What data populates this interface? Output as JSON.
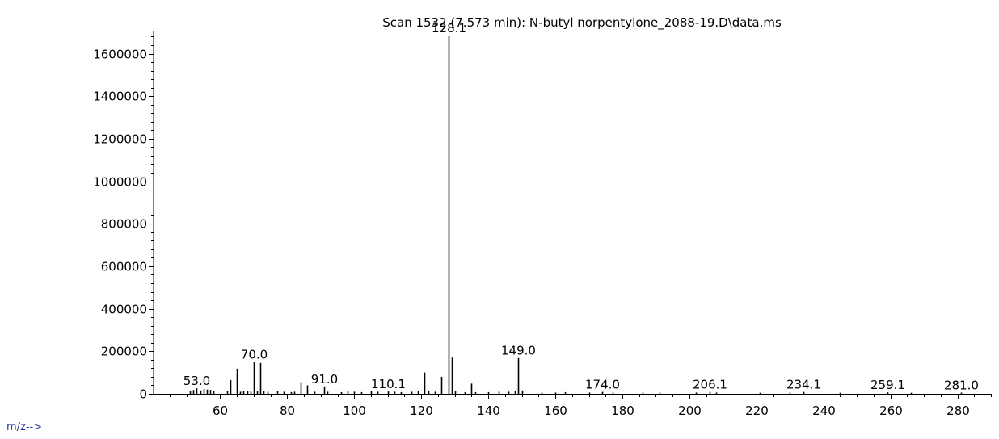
{
  "xaxis_label": "m/z-->",
  "chart_data": {
    "type": "bar",
    "title": "Scan 1532 (7.573 min): N-butyl norpentylone_2088-19.D\\data.ms",
    "xlabel": "m/z-->",
    "ylabel": "",
    "xlim": [
      43,
      290
    ],
    "ylim": [
      0,
      1750000
    ],
    "x_ticks": [
      60,
      80,
      100,
      120,
      140,
      160,
      180,
      200,
      220,
      240,
      260,
      280
    ],
    "y_ticks": [
      0,
      200000,
      400000,
      600000,
      800000,
      1000000,
      1200000,
      1400000,
      1600000
    ],
    "grid": false,
    "peaks": [
      {
        "mz": 51.0,
        "abundance": 14000
      },
      {
        "mz": 52.0,
        "abundance": 18000
      },
      {
        "mz": 53.0,
        "abundance": 26000,
        "label": "53.0"
      },
      {
        "mz": 54.0,
        "abundance": 16000
      },
      {
        "mz": 55.0,
        "abundance": 22000
      },
      {
        "mz": 56.0,
        "abundance": 20000
      },
      {
        "mz": 57.0,
        "abundance": 18000
      },
      {
        "mz": 58.0,
        "abundance": 12000
      },
      {
        "mz": 62.0,
        "abundance": 14000
      },
      {
        "mz": 63.0,
        "abundance": 65000
      },
      {
        "mz": 65.0,
        "abundance": 118000
      },
      {
        "mz": 66.0,
        "abundance": 10000
      },
      {
        "mz": 67.0,
        "abundance": 14000
      },
      {
        "mz": 68.0,
        "abundance": 12000
      },
      {
        "mz": 69.0,
        "abundance": 14000
      },
      {
        "mz": 70.0,
        "abundance": 150000,
        "label": "70.0"
      },
      {
        "mz": 71.0,
        "abundance": 12000
      },
      {
        "mz": 72.0,
        "abundance": 145000
      },
      {
        "mz": 73.0,
        "abundance": 12000
      },
      {
        "mz": 74.0,
        "abundance": 10000
      },
      {
        "mz": 77.0,
        "abundance": 14000
      },
      {
        "mz": 79.0,
        "abundance": 10000
      },
      {
        "mz": 81.0,
        "abundance": 8000
      },
      {
        "mz": 82.0,
        "abundance": 10000
      },
      {
        "mz": 84.0,
        "abundance": 55000
      },
      {
        "mz": 86.0,
        "abundance": 40000
      },
      {
        "mz": 88.0,
        "abundance": 10000
      },
      {
        "mz": 91.0,
        "abundance": 35000,
        "label": "91.0"
      },
      {
        "mz": 92.0,
        "abundance": 10000
      },
      {
        "mz": 96.0,
        "abundance": 8000
      },
      {
        "mz": 98.0,
        "abundance": 12000
      },
      {
        "mz": 100.0,
        "abundance": 10000
      },
      {
        "mz": 102.0,
        "abundance": 8000
      },
      {
        "mz": 105.0,
        "abundance": 14000
      },
      {
        "mz": 107.0,
        "abundance": 10000
      },
      {
        "mz": 110.1,
        "abundance": 11000,
        "label": "110.1"
      },
      {
        "mz": 112.0,
        "abundance": 10000
      },
      {
        "mz": 114.0,
        "abundance": 8000
      },
      {
        "mz": 117.0,
        "abundance": 10000
      },
      {
        "mz": 119.0,
        "abundance": 12000
      },
      {
        "mz": 121.0,
        "abundance": 100000
      },
      {
        "mz": 122.0,
        "abundance": 14000
      },
      {
        "mz": 124.0,
        "abundance": 10000
      },
      {
        "mz": 126.0,
        "abundance": 80000
      },
      {
        "mz": 128.1,
        "abundance": 1685000,
        "label": "128.1"
      },
      {
        "mz": 129.1,
        "abundance": 170000
      },
      {
        "mz": 130.0,
        "abundance": 12000
      },
      {
        "mz": 133.0,
        "abundance": 8000
      },
      {
        "mz": 135.0,
        "abundance": 48000
      },
      {
        "mz": 136.0,
        "abundance": 8000
      },
      {
        "mz": 140.0,
        "abundance": 8000
      },
      {
        "mz": 143.0,
        "abundance": 10000
      },
      {
        "mz": 146.0,
        "abundance": 10000
      },
      {
        "mz": 148.0,
        "abundance": 14000
      },
      {
        "mz": 149.0,
        "abundance": 168000,
        "label": "149.0"
      },
      {
        "mz": 150.0,
        "abundance": 16000
      },
      {
        "mz": 156.0,
        "abundance": 6000
      },
      {
        "mz": 160.0,
        "abundance": 6000
      },
      {
        "mz": 163.0,
        "abundance": 8000
      },
      {
        "mz": 170.0,
        "abundance": 6000
      },
      {
        "mz": 174.0,
        "abundance": 9000,
        "label": "174.0"
      },
      {
        "mz": 177.0,
        "abundance": 6000
      },
      {
        "mz": 186.0,
        "abundance": 6000
      },
      {
        "mz": 191.0,
        "abundance": 6000
      },
      {
        "mz": 202.0,
        "abundance": 6000
      },
      {
        "mz": 206.1,
        "abundance": 9000,
        "label": "206.1"
      },
      {
        "mz": 208.0,
        "abundance": 6000
      },
      {
        "mz": 221.0,
        "abundance": 5000
      },
      {
        "mz": 230.0,
        "abundance": 6000
      },
      {
        "mz": 234.1,
        "abundance": 9000,
        "label": "234.1"
      },
      {
        "mz": 245.0,
        "abundance": 5000
      },
      {
        "mz": 259.1,
        "abundance": 7000,
        "label": "259.1"
      },
      {
        "mz": 266.0,
        "abundance": 5000
      },
      {
        "mz": 281.0,
        "abundance": 6000,
        "label": "281.0"
      }
    ]
  }
}
